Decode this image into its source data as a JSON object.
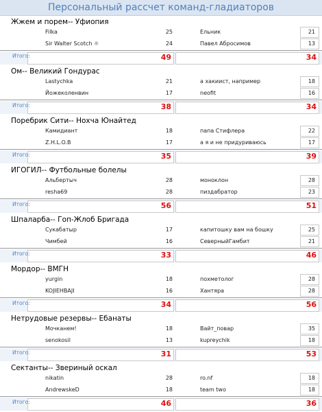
{
  "title": "Персональный рассчет команд-гладиаторов",
  "matches": [
    {
      "title": "Жжем и порем-- Уфиопия",
      "rows": [
        {
          "home_player": "Filka",
          "home_score": 25,
          "away_player": "Ельник",
          "away_score": 21
        },
        {
          "home_player": "Sir Walter Scotch ☼",
          "home_score": 24,
          "away_player": "Павел Абросимов",
          "away_score": 13
        }
      ],
      "total_label": "Итого:",
      "home_total": 49,
      "away_total": 34
    },
    {
      "title": "Ом-- Великий Гондурас",
      "rows": [
        {
          "home_player": "Lastychka",
          "home_score": 21,
          "away_player": "а хакиист, например",
          "away_score": 18
        },
        {
          "home_player": "Йожеколенвин",
          "home_score": 17,
          "away_player": "neofit",
          "away_score": 16
        }
      ],
      "total_label": "Итого:",
      "home_total": 38,
      "away_total": 34
    },
    {
      "title": "Поребрик Сити-- Нохча Юнайтед",
      "rows": [
        {
          "home_player": "Камидиант",
          "home_score": 18,
          "away_player": "папа Стифлера",
          "away_score": 22
        },
        {
          "home_player": "Z.H.L.O.B",
          "home_score": 17,
          "away_player": "а я и не придуриваюсь",
          "away_score": 17
        }
      ],
      "total_label": "Итого:",
      "home_total": 35,
      "away_total": 39
    },
    {
      "title": "ИГОГИЛ-- Футбольные болелы",
      "rows": [
        {
          "home_player": "Альбертыч",
          "home_score": 28,
          "away_player": "моноклон",
          "away_score": 28
        },
        {
          "home_player": "resha69",
          "home_score": 28,
          "away_player": "пиздабратор",
          "away_score": 23
        }
      ],
      "total_label": "Итого:",
      "home_total": 56,
      "away_total": 51
    },
    {
      "title": "Шпаларба-- Гоп-Жлоб Бригада",
      "rows": [
        {
          "home_player": "Сукабатыр",
          "home_score": 17,
          "away_player": "капитошку вам на бошку",
          "away_score": 25
        },
        {
          "home_player": "Чимбей",
          "home_score": 16,
          "away_player": "СеверныйГамбит",
          "away_score": 21
        }
      ],
      "total_label": "Итого:",
      "home_total": 33,
      "away_total": 46
    },
    {
      "title": "Мордор-- ВМГН",
      "rows": [
        {
          "home_player": "yurgin",
          "home_score": 18,
          "away_player": "похметолог",
          "away_score": 28
        },
        {
          "home_player": "KOJIEHBAJI",
          "home_score": 16,
          "away_player": "Хантяра",
          "away_score": 28
        }
      ],
      "total_label": "Итого:",
      "home_total": 34,
      "away_total": 56
    },
    {
      "title": "Нетрудовые резервы-- Ебанаты",
      "rows": [
        {
          "home_player": "Мочканем!",
          "home_score": 18,
          "away_player": "Вайт_повар",
          "away_score": 35
        },
        {
          "home_player": "senokosil",
          "home_score": 13,
          "away_player": "kupreychik",
          "away_score": 18
        }
      ],
      "total_label": "Итого:",
      "home_total": 31,
      "away_total": 53
    },
    {
      "title": "Сектанты-- Звериный оскал",
      "rows": [
        {
          "home_player": "nikatin",
          "home_score": 28,
          "away_player": "ro.nf",
          "away_score": 18
        },
        {
          "home_player": "AndrewskeD",
          "home_score": 18,
          "away_player": "team two",
          "away_score": 18
        }
      ],
      "total_label": "Итого:",
      "home_total": 46,
      "away_total": 36
    }
  ]
}
